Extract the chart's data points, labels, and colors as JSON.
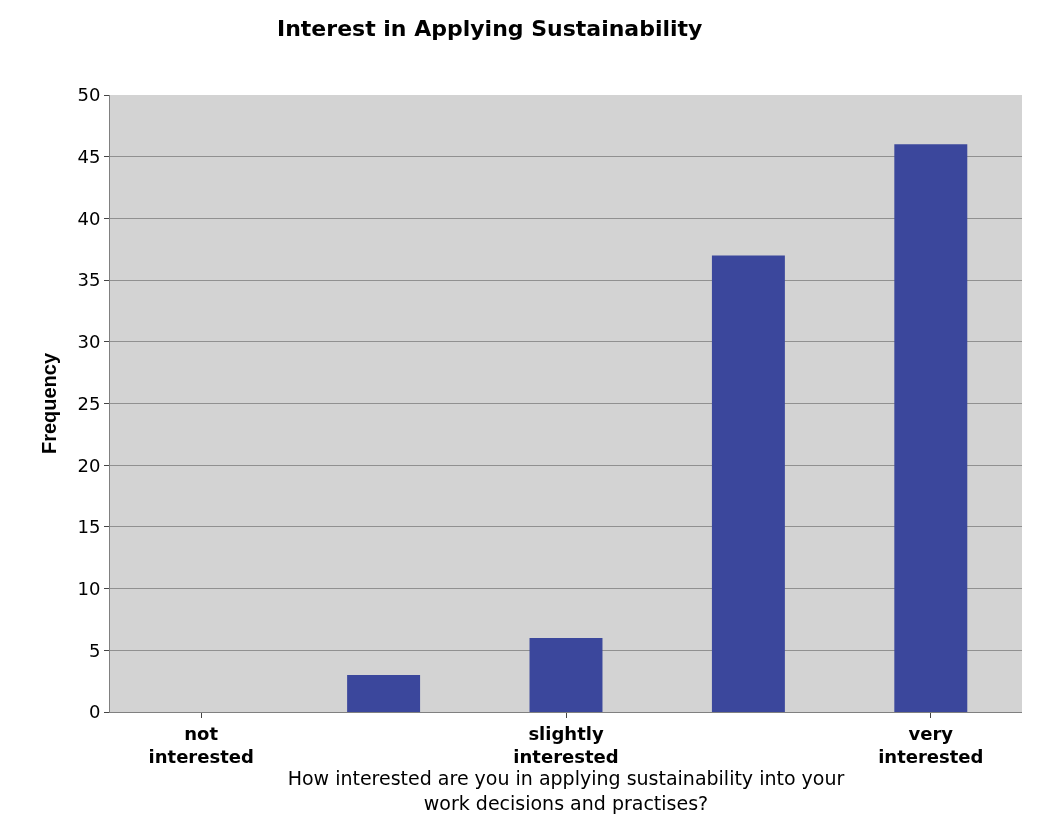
{
  "chart_data": {
    "type": "bar",
    "title": "Interest in Applying Sustainability",
    "xlabel": "How interested are you in applying sustainability into your work decisions and practises?",
    "ylabel": "Frequency",
    "categories": [
      "not interested",
      null,
      "slightly interested",
      null,
      "very interested"
    ],
    "values": [
      0,
      3,
      6,
      37,
      46
    ],
    "color": "#3b479c",
    "ylim": [
      0,
      50
    ],
    "yticks": [
      0,
      5,
      10,
      15,
      20,
      25,
      30,
      35,
      40,
      45,
      50
    ],
    "grid": "y"
  }
}
